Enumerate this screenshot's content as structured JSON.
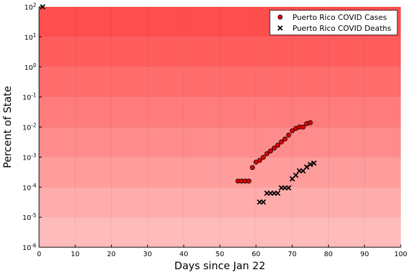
{
  "chart_data": {
    "type": "scatter",
    "xlabel": "Days since Jan 22",
    "ylabel": "Percent of State",
    "xlim": [
      0,
      100
    ],
    "ylim": [
      1e-06,
      100
    ],
    "yscale": "log",
    "grid": true,
    "legend_position": "top-right",
    "background": "red gradient bands by decade (darker at top)",
    "x_ticks": [
      0,
      10,
      20,
      30,
      40,
      50,
      60,
      70,
      80,
      90,
      100
    ],
    "x_tick_labels": [
      "0",
      "10",
      "20",
      "30",
      "40",
      "50",
      "60",
      "70",
      "80",
      "90",
      "100"
    ],
    "y_ticks": [
      1e-06,
      1e-05,
      0.0001,
      0.001,
      0.01,
      0.1,
      1,
      10,
      100
    ],
    "y_tick_exponents": [
      "-6",
      "-5",
      "-4",
      "-3",
      "-2",
      "-1",
      "0",
      "1",
      "2"
    ],
    "y_tick_base": "10",
    "series": [
      {
        "name": "Puerto Rico COVID Cases",
        "marker": "circle",
        "color": "#e00000",
        "x": [
          55,
          56,
          57,
          58,
          59,
          60,
          61,
          62,
          63,
          64,
          65,
          66,
          67,
          68,
          69,
          70,
          71,
          72,
          73,
          74,
          75
        ],
        "y": [
          0.00016,
          0.00016,
          0.00016,
          0.00016,
          0.00045,
          0.00068,
          0.00078,
          0.00098,
          0.0013,
          0.0016,
          0.002,
          0.0025,
          0.0032,
          0.004,
          0.0054,
          0.0075,
          0.009,
          0.01,
          0.01,
          0.013,
          0.014
        ]
      },
      {
        "name": "Puerto Rico COVID Deaths",
        "marker": "x",
        "color": "#000000",
        "x": [
          1,
          61,
          62,
          63,
          64,
          65,
          66,
          67,
          68,
          69,
          70,
          71,
          72,
          73,
          74,
          75,
          76
        ],
        "y": [
          100,
          3.2e-05,
          3.2e-05,
          6.3e-05,
          6.3e-05,
          6.3e-05,
          6.3e-05,
          9.5e-05,
          9.5e-05,
          9.5e-05,
          0.00019,
          0.00025,
          0.00035,
          0.00035,
          0.00047,
          0.00057,
          0.00063
        ]
      }
    ]
  }
}
